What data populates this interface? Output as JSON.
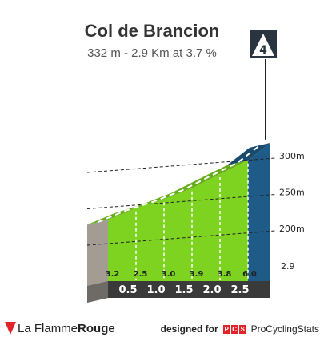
{
  "header": {
    "title": "Col de Brancion",
    "subtitle": "332 m - 2.9 Km at 3.7 %"
  },
  "chart_data": {
    "type": "area",
    "title": "Col de Brancion",
    "subtitle": "332 m - 2.9 Km at 3.7 %",
    "summit_altitude_m": 332,
    "length_km": 2.9,
    "avg_gradient_pct": 3.7,
    "category": "4",
    "xlim": [
      0,
      2.9
    ],
    "ylim": [
      175,
      332
    ],
    "y_ticks": [
      {
        "value": 200,
        "label": "200m"
      },
      {
        "value": 250,
        "label": "250m"
      },
      {
        "value": 300,
        "label": "300m"
      }
    ],
    "x_markers": [
      {
        "value": 0.5,
        "label": "0.5"
      },
      {
        "value": 1.0,
        "label": "1.0"
      },
      {
        "value": 1.5,
        "label": "1.5"
      },
      {
        "value": 2.0,
        "label": "2.0"
      },
      {
        "value": 2.5,
        "label": "2.5"
      }
    ],
    "end_label": "2.9",
    "segments": [
      {
        "start_km": 0.0,
        "end_km": 0.5,
        "gradient": 3.2,
        "label": "3.2",
        "color": "#7ed321"
      },
      {
        "start_km": 0.5,
        "end_km": 1.0,
        "gradient": 2.5,
        "label": "2.5",
        "color": "#7ed321"
      },
      {
        "start_km": 1.0,
        "end_km": 1.5,
        "gradient": 3.0,
        "label": "3.0",
        "color": "#7ed321"
      },
      {
        "start_km": 1.5,
        "end_km": 2.0,
        "gradient": 3.9,
        "label": "3.9",
        "color": "#7ed321"
      },
      {
        "start_km": 2.0,
        "end_km": 2.5,
        "gradient": 3.8,
        "label": "3.8",
        "color": "#7ed321"
      },
      {
        "start_km": 2.5,
        "end_km": 2.9,
        "gradient": 6.0,
        "label": "6.0",
        "color": "#1e5b86"
      }
    ]
  },
  "footer": {
    "brand_prefix": "La Flamme",
    "brand_bold": "Rouge",
    "designed_for": "designed for",
    "pcs_letters": [
      "P",
      "C",
      "S"
    ],
    "site": "ProCyclingStats"
  }
}
